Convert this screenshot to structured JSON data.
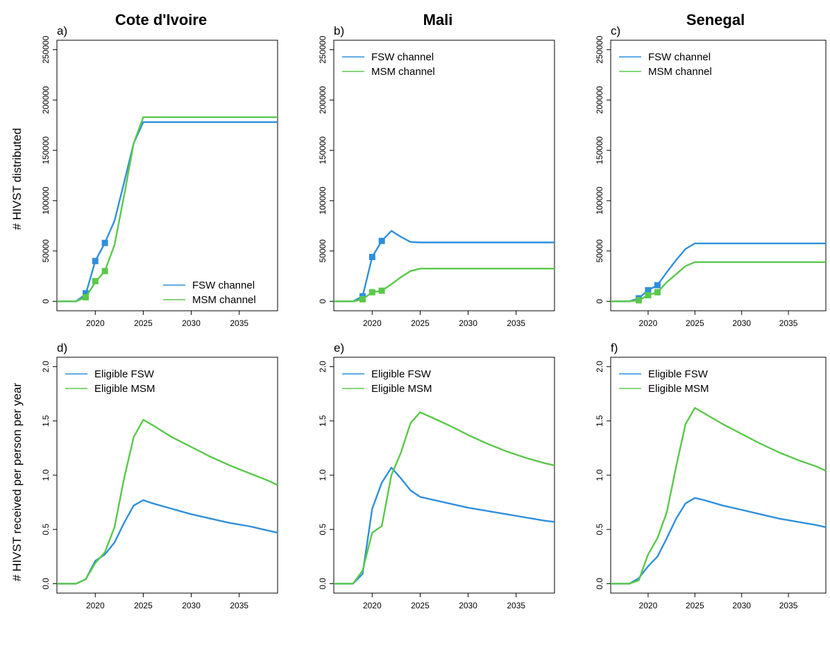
{
  "figure": {
    "column_titles": [
      "Cote d'Ivoire",
      "Mali",
      "Senegal"
    ],
    "row_ylabels": [
      "# HIVST distributed",
      "# HIVST received per person per year"
    ]
  },
  "colors": {
    "blue": "#2f8fdc",
    "green": "#5ac84a"
  },
  "chart_data": [
    {
      "panel": "a)",
      "type": "line",
      "x_ticks": [
        2020,
        2025,
        2030,
        2035
      ],
      "xlim": [
        2016,
        2039
      ],
      "y_ticks": [
        0,
        50000,
        100000,
        150000,
        200000,
        250000
      ],
      "ylim": [
        0,
        250000
      ],
      "legend_position": "bottom-right",
      "series": [
        {
          "name": "FSW channel",
          "color": "#2f8fdc",
          "x": [
            2016,
            2018,
            2019,
            2020,
            2021,
            2022,
            2023,
            2024,
            2025,
            2039
          ],
          "y": [
            0,
            0,
            7000,
            40000,
            58000,
            80000,
            118000,
            157000,
            178000,
            178000
          ],
          "markers": {
            "x": [
              2019,
              2020,
              2021
            ],
            "y": [
              8000,
              40000,
              58000
            ]
          }
        },
        {
          "name": "MSM channel",
          "color": "#5ac84a",
          "x": [
            2016,
            2018,
            2019,
            2020,
            2021,
            2022,
            2023,
            2024,
            2025,
            2039
          ],
          "y": [
            0,
            0,
            4000,
            19000,
            30000,
            56000,
            105000,
            157000,
            183000,
            183000
          ],
          "markers": {
            "x": [
              2019,
              2020,
              2021
            ],
            "y": [
              4000,
              20000,
              30000
            ]
          }
        }
      ]
    },
    {
      "panel": "b)",
      "type": "line",
      "x_ticks": [
        2020,
        2025,
        2030,
        2035
      ],
      "xlim": [
        2016,
        2039
      ],
      "y_ticks": [
        0,
        50000,
        100000,
        150000,
        200000,
        250000
      ],
      "ylim": [
        0,
        250000
      ],
      "legend_position": "top-left",
      "series": [
        {
          "name": "FSW channel",
          "color": "#2f8fdc",
          "x": [
            2016,
            2018,
            2019,
            2020,
            2021,
            2022,
            2023,
            2024,
            2025,
            2039
          ],
          "y": [
            0,
            0,
            5000,
            44000,
            60000,
            70000,
            64000,
            59000,
            58500,
            58500
          ],
          "markers": {
            "x": [
              2019,
              2020,
              2021
            ],
            "y": [
              5000,
              44000,
              60000
            ]
          }
        },
        {
          "name": "MSM channel",
          "color": "#5ac84a",
          "x": [
            2016,
            2018,
            2019,
            2020,
            2021,
            2022,
            2023,
            2024,
            2025,
            2039
          ],
          "y": [
            0,
            0,
            2000,
            9000,
            10500,
            17000,
            24000,
            30000,
            32500,
            32500
          ],
          "markers": {
            "x": [
              2019,
              2020,
              2021
            ],
            "y": [
              2000,
              9000,
              10500
            ]
          }
        }
      ]
    },
    {
      "panel": "c)",
      "type": "line",
      "x_ticks": [
        2020,
        2025,
        2030,
        2035
      ],
      "xlim": [
        2016,
        2039
      ],
      "y_ticks": [
        0,
        50000,
        100000,
        150000,
        200000,
        250000
      ],
      "ylim": [
        0,
        250000
      ],
      "legend_position": "top-left",
      "series": [
        {
          "name": "FSW channel",
          "color": "#2f8fdc",
          "x": [
            2016,
            2018,
            2019,
            2020,
            2021,
            2022,
            2023,
            2024,
            2025,
            2039
          ],
          "y": [
            0,
            0,
            3000,
            11000,
            16000,
            29000,
            41000,
            52000,
            57500,
            57500
          ],
          "markers": {
            "x": [
              2019,
              2020,
              2021
            ],
            "y": [
              3000,
              11000,
              16000
            ]
          }
        },
        {
          "name": "MSM channel",
          "color": "#5ac84a",
          "x": [
            2016,
            2018,
            2019,
            2020,
            2021,
            2022,
            2023,
            2024,
            2025,
            2039
          ],
          "y": [
            0,
            0,
            1000,
            6000,
            9000,
            19000,
            27000,
            35000,
            39000,
            39000
          ],
          "markers": {
            "x": [
              2019,
              2020,
              2021
            ],
            "y": [
              1000,
              6000,
              9000
            ]
          }
        }
      ]
    },
    {
      "panel": "d)",
      "type": "line",
      "x_ticks": [
        2020,
        2025,
        2030,
        2035
      ],
      "xlim": [
        2016,
        2039
      ],
      "y_ticks": [
        0.0,
        0.5,
        1.0,
        1.5,
        2.0
      ],
      "y_tick_labels": [
        "0.0",
        "0.5",
        "1.0",
        "1.5",
        "2.0"
      ],
      "ylim": [
        0,
        2
      ],
      "legend_position": "top-left",
      "series": [
        {
          "name": "Eligible FSW",
          "color": "#2f8fdc",
          "x": [
            2016,
            2018,
            2019,
            2020,
            2021,
            2022,
            2023,
            2024,
            2025,
            2026,
            2028,
            2030,
            2032,
            2034,
            2036,
            2038,
            2039
          ],
          "y": [
            0,
            0,
            0.04,
            0.21,
            0.27,
            0.38,
            0.56,
            0.72,
            0.77,
            0.74,
            0.69,
            0.64,
            0.6,
            0.56,
            0.53,
            0.49,
            0.47
          ]
        },
        {
          "name": "Eligible MSM",
          "color": "#5ac84a",
          "x": [
            2016,
            2018,
            2019,
            2020,
            2021,
            2022,
            2023,
            2024,
            2025,
            2026,
            2028,
            2030,
            2032,
            2034,
            2036,
            2038,
            2039
          ],
          "y": [
            0,
            0,
            0.04,
            0.19,
            0.29,
            0.52,
            0.97,
            1.35,
            1.51,
            1.46,
            1.35,
            1.26,
            1.17,
            1.09,
            1.02,
            0.95,
            0.91
          ]
        }
      ]
    },
    {
      "panel": "e)",
      "type": "line",
      "x_ticks": [
        2020,
        2025,
        2030,
        2035
      ],
      "xlim": [
        2016,
        2039
      ],
      "y_ticks": [
        0.0,
        0.5,
        1.0,
        1.5,
        2.0
      ],
      "y_tick_labels": [
        "0.0",
        "0.5",
        "1.0",
        "1.5",
        "2.0"
      ],
      "ylim": [
        0,
        2
      ],
      "legend_position": "top-left",
      "series": [
        {
          "name": "Eligible FSW",
          "color": "#2f8fdc",
          "x": [
            2016,
            2018,
            2019,
            2020,
            2021,
            2022,
            2023,
            2024,
            2025,
            2026,
            2028,
            2030,
            2032,
            2034,
            2036,
            2038,
            2039
          ],
          "y": [
            0,
            0,
            0.09,
            0.69,
            0.93,
            1.07,
            0.97,
            0.86,
            0.8,
            0.78,
            0.74,
            0.7,
            0.67,
            0.64,
            0.61,
            0.58,
            0.57
          ]
        },
        {
          "name": "Eligible MSM",
          "color": "#5ac84a",
          "x": [
            2016,
            2018,
            2019,
            2020,
            2021,
            2022,
            2023,
            2024,
            2025,
            2026,
            2028,
            2030,
            2032,
            2034,
            2036,
            2038,
            2039
          ],
          "y": [
            0,
            0,
            0.12,
            0.47,
            0.53,
            1.0,
            1.21,
            1.48,
            1.58,
            1.54,
            1.46,
            1.37,
            1.29,
            1.22,
            1.16,
            1.11,
            1.09
          ]
        }
      ]
    },
    {
      "panel": "f)",
      "type": "line",
      "x_ticks": [
        2020,
        2025,
        2030,
        2035
      ],
      "xlim": [
        2016,
        2039
      ],
      "y_ticks": [
        0.0,
        0.5,
        1.0,
        1.5,
        2.0
      ],
      "y_tick_labels": [
        "0.0",
        "0.5",
        "1.0",
        "1.5",
        "2.0"
      ],
      "ylim": [
        0,
        2
      ],
      "legend_position": "top-left",
      "series": [
        {
          "name": "Eligible FSW",
          "color": "#2f8fdc",
          "x": [
            2016,
            2018,
            2019,
            2020,
            2021,
            2022,
            2023,
            2024,
            2025,
            2026,
            2028,
            2030,
            2032,
            2034,
            2036,
            2038,
            2039
          ],
          "y": [
            0,
            0,
            0.05,
            0.16,
            0.25,
            0.42,
            0.6,
            0.74,
            0.79,
            0.77,
            0.72,
            0.68,
            0.64,
            0.6,
            0.57,
            0.54,
            0.52
          ]
        },
        {
          "name": "Eligible MSM",
          "color": "#5ac84a",
          "x": [
            2016,
            2018,
            2019,
            2020,
            2021,
            2022,
            2023,
            2024,
            2025,
            2026,
            2028,
            2030,
            2032,
            2034,
            2036,
            2038,
            2039
          ],
          "y": [
            0,
            0,
            0.03,
            0.27,
            0.42,
            0.66,
            1.08,
            1.47,
            1.62,
            1.57,
            1.47,
            1.38,
            1.29,
            1.21,
            1.14,
            1.08,
            1.04
          ]
        }
      ]
    }
  ]
}
